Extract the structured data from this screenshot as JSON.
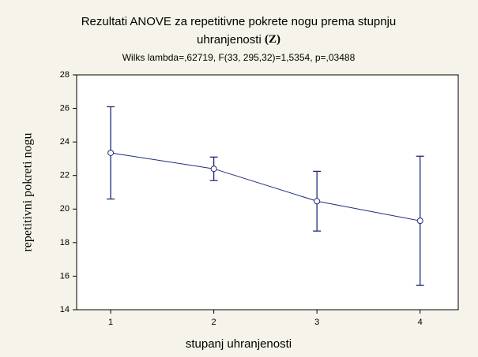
{
  "chart_data": {
    "type": "errorbar",
    "title": [
      "Rezultati ANOVE za repetitivne pokrete nogu prema stupnju",
      "uhranjenosti"
    ],
    "title_suffix": "(Z)",
    "subtitle": "Wilks lambda=,62719, F(33, 295,32)=1,5354, p=,03488",
    "xlabel": "stupanj uhranjenosti",
    "ylabel": "repetitivni pokreti nogu",
    "x": [
      1,
      2,
      3,
      4
    ],
    "y": [
      23.35,
      22.4,
      20.47,
      19.3
    ],
    "errors": [
      2.75,
      0.7,
      1.78,
      3.85
    ],
    "color": "#1f2a7a",
    "xlim": [
      0.67,
      4.37
    ],
    "xticks": [
      1,
      2,
      3,
      4
    ],
    "ylim": [
      14,
      28
    ],
    "yticks": [
      14,
      16,
      18,
      20,
      22,
      24,
      26,
      28
    ]
  }
}
